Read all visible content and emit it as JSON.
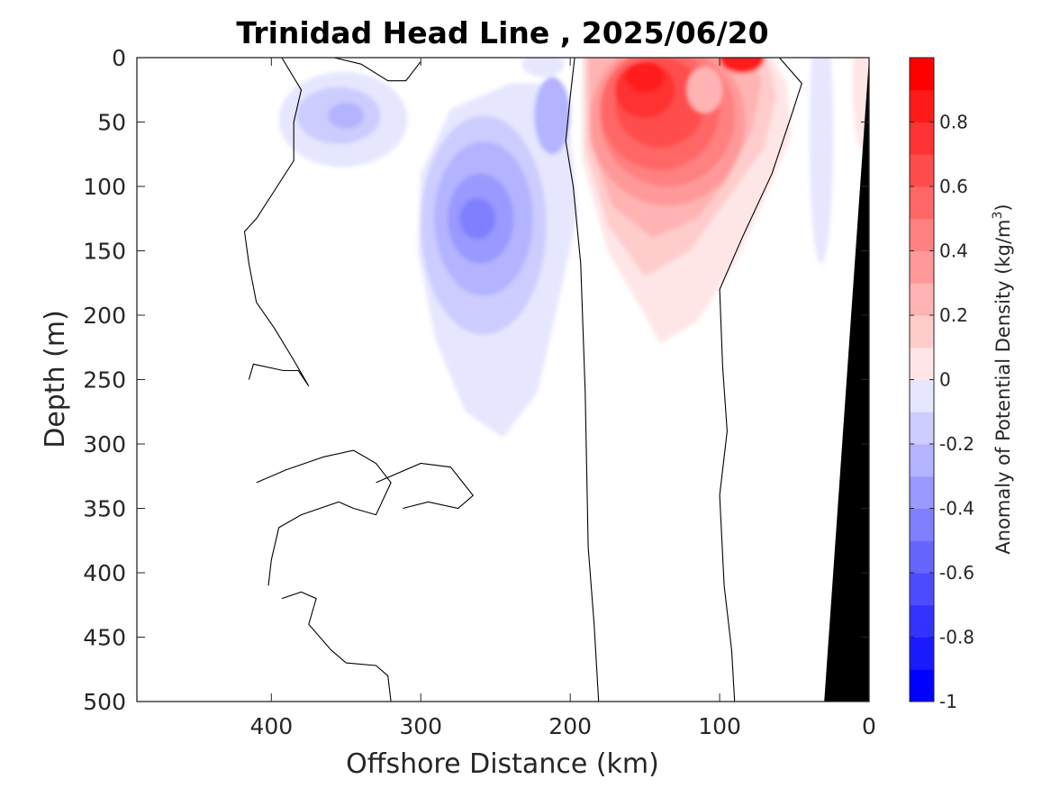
{
  "chart_data": {
    "type": "heatmap",
    "title": "Trinidad Head Line , 2025/06/20",
    "xlabel": "Offshore Distance (km)",
    "ylabel": "Depth (m)",
    "x_direction": "reversed",
    "y_direction": "reversed",
    "xlim": [
      490,
      0
    ],
    "ylim": [
      500,
      0
    ],
    "xticks": [
      "400",
      "300",
      "200",
      "100",
      "0"
    ],
    "yticks": [
      "0",
      "50",
      "100",
      "150",
      "200",
      "250",
      "300",
      "350",
      "400",
      "450",
      "500"
    ],
    "colorbar": {
      "label": "Anomaly of Potential Density (kg/m",
      "label_superscript": "3",
      "label_close": ")",
      "range": [
        -1,
        1
      ],
      "levels": 20,
      "ticks": [
        "0.8",
        "0.6",
        "0.4",
        "0.2",
        "0",
        "-0.2",
        "-0.4",
        "-0.6",
        "-0.8",
        "-1"
      ],
      "colormap": "blue-white-red",
      "color_positive": "#ff0000",
      "color_negative": "#0000ff",
      "color_zero": "#ffffff"
    },
    "features": [
      {
        "name": "positive anomaly core",
        "x_center": 145,
        "depth_center": 40,
        "peak_value": 0.95,
        "extent_x": [
          195,
          50
        ],
        "extent_depth": [
          0,
          220
        ]
      },
      {
        "name": "negative anomaly core",
        "x_center": 260,
        "depth_center": 125,
        "peak_value": -0.5,
        "extent_x": [
          345,
          195
        ],
        "extent_depth": [
          20,
          295
        ]
      },
      {
        "name": "negative anomaly shallow",
        "x_center": 350,
        "depth_center": 45,
        "peak_value": -0.25,
        "extent_x": [
          395,
          320
        ],
        "extent_depth": [
          15,
          90
        ]
      },
      {
        "name": "bathymetry",
        "color": "#000000",
        "x_at_surface": 0,
        "x_at_500m": 30
      }
    ]
  }
}
